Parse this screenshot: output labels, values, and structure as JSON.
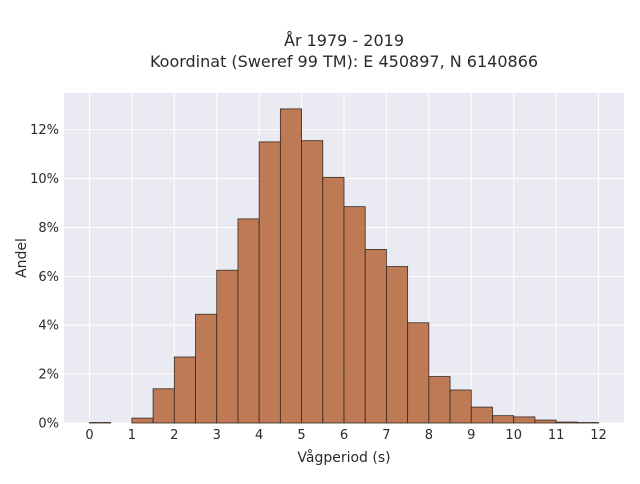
{
  "chart_data": {
    "type": "bar",
    "title_lines": [
      "År 1979 - 2019",
      "Koordinat (Sweref 99 TM): E 450897, N 6140866"
    ],
    "xlabel": "Vågperiod (s)",
    "ylabel": "Andel",
    "x_ticks": [
      0,
      1,
      2,
      3,
      4,
      5,
      6,
      7,
      8,
      9,
      10,
      11,
      12
    ],
    "y_ticks": [
      0,
      2,
      4,
      6,
      8,
      10,
      12
    ],
    "y_tick_suffix": "%",
    "xlim": [
      -0.6,
      12.6
    ],
    "ylim": [
      0,
      13.5
    ],
    "bin_width": 0.5,
    "bins": [
      {
        "x": 0.0,
        "value": 0.02
      },
      {
        "x": 1.0,
        "value": 0.2
      },
      {
        "x": 1.5,
        "value": 1.4
      },
      {
        "x": 2.0,
        "value": 2.7
      },
      {
        "x": 2.5,
        "value": 4.45
      },
      {
        "x": 3.0,
        "value": 6.25
      },
      {
        "x": 3.5,
        "value": 8.35
      },
      {
        "x": 4.0,
        "value": 11.5
      },
      {
        "x": 4.5,
        "value": 12.85
      },
      {
        "x": 5.0,
        "value": 11.55
      },
      {
        "x": 5.5,
        "value": 10.05
      },
      {
        "x": 6.0,
        "value": 8.85
      },
      {
        "x": 6.5,
        "value": 7.1
      },
      {
        "x": 7.0,
        "value": 6.4
      },
      {
        "x": 7.5,
        "value": 4.1
      },
      {
        "x": 8.0,
        "value": 1.9
      },
      {
        "x": 8.5,
        "value": 1.35
      },
      {
        "x": 9.0,
        "value": 0.65
      },
      {
        "x": 9.5,
        "value": 0.3
      },
      {
        "x": 10.0,
        "value": 0.25
      },
      {
        "x": 10.5,
        "value": 0.12
      },
      {
        "x": 11.0,
        "value": 0.04
      },
      {
        "x": 11.5,
        "value": 0.02
      }
    ],
    "colors": {
      "bar": "#b5663a",
      "bar_edge": "#3a2a22",
      "plot_bg": "#eaeaf2",
      "grid": "#ffffff"
    },
    "grid": true
  }
}
